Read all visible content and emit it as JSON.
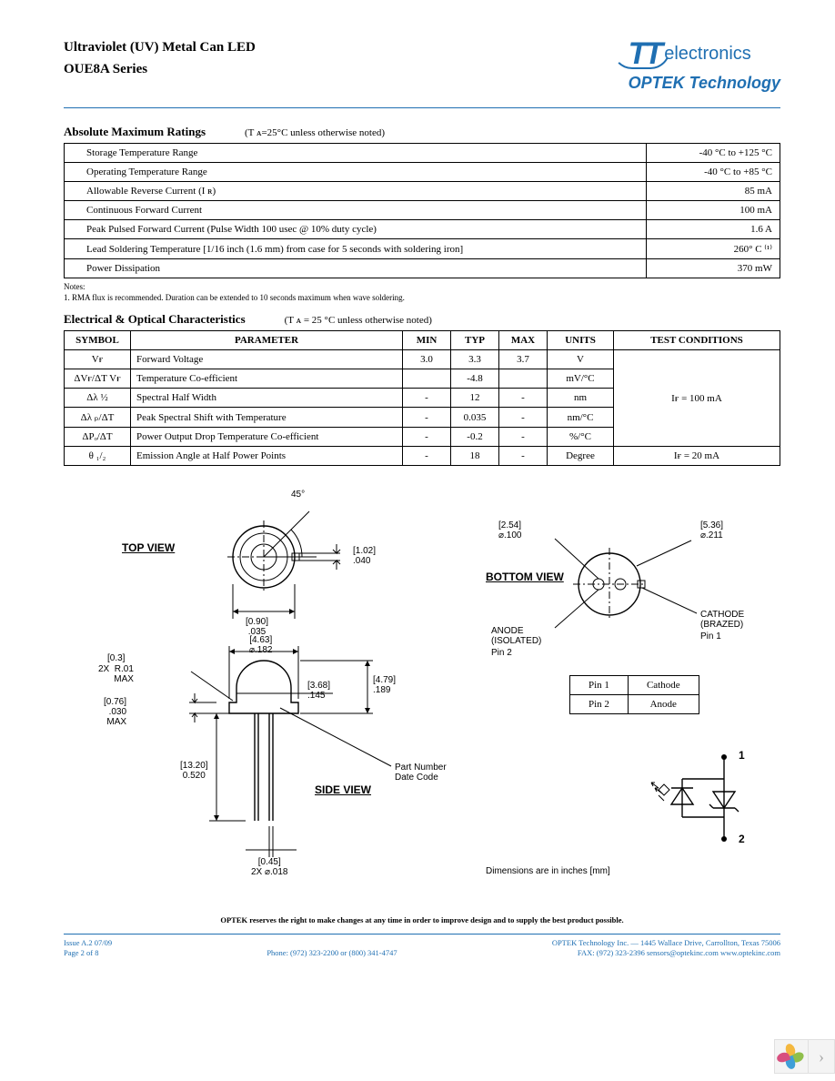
{
  "header": {
    "title1": "Ultraviolet (UV) Metal Can LED",
    "title2": "OUE8A Series",
    "logo_elec": "electronics",
    "logo_optek": "OPTEK Technology"
  },
  "ratings": {
    "section_title": "Absolute Maximum Ratings",
    "section_note": "(T ᴀ=25°C unless otherwise noted)",
    "rows": [
      {
        "label": "Storage Temperature Range",
        "value": "-40 °C to +125  °C"
      },
      {
        "label": "Operating Temperature Range",
        "value": "-40 °C to +85  °C"
      },
      {
        "label": "Allowable Reverse Current (I ʀ)",
        "value": "85 mA"
      },
      {
        "label": "Continuous Forward Current",
        "value": "100 mA"
      },
      {
        "label": "Peak Pulsed Forward Current  (Pulse Width 100 usec @  10% duty cycle)",
        "value": "1.6 A"
      },
      {
        "label": "Lead Soldering Temperature [1/16 inch (1.6 mm) from case for 5 seconds with soldering iron]",
        "value": "260° C ⁽¹⁾"
      },
      {
        "label": "Power Dissipation",
        "value": "370  mW"
      }
    ],
    "notes_label": "Notes:",
    "note1": "1. RMA flux is recommended. Duration can be extended to 10 seconds maximum when wave soldering."
  },
  "chars": {
    "section_title": "Electrical & Optical Characteristics",
    "section_note": "(T ᴀ = 25  °C unless otherwise noted)",
    "headers": [
      "SYMBOL",
      "PARAMETER",
      "MIN",
      "TYP",
      "MAX",
      "UNITS",
      "TEST   CONDITIONS"
    ],
    "rows": [
      {
        "sym": "Vғ",
        "param": "Forward Voltage",
        "min": "3.0",
        "typ": "3.3",
        "max": "3.7",
        "units": "V"
      },
      {
        "sym": "ΔVғ/ΔT Vғ",
        "param": "Temperature Co-efficient",
        "min": "",
        "typ": "-4.8",
        "max": "",
        "units": "mV/°C"
      },
      {
        "sym": "Δλ ½",
        "param": "Spectral Half Width",
        "min": "-",
        "typ": "12",
        "max": "-",
        "units": "nm"
      },
      {
        "sym": "Δλ ₚ/ΔT",
        "param": "Peak Spectral Shift with Temperature",
        "min": "-",
        "typ": "0.035",
        "max": "-",
        "units": "nm/°C"
      },
      {
        "sym": "ΔPₒ/ΔT",
        "param": "Power Output Drop Temperature Co-efficient",
        "min": "-",
        "typ": "-0.2",
        "max": "-",
        "units": "%/°C"
      }
    ],
    "cond1": "Iғ = 100 mA",
    "last_row": {
      "sym": "θ ₁/₂",
      "param": "Emission Angle at Half Power Points",
      "min": "-",
      "typ": "18",
      "max": "-",
      "units": "Degree",
      "cond": "Iғ = 20 mA"
    }
  },
  "diagram": {
    "top_view": "TOP VIEW",
    "side_view": "SIDE VIEW",
    "bottom_view": "BOTTOM VIEW",
    "angle45": "45°",
    "d102": "[1.02]\n.040",
    "d090": "[0.90]\n.035",
    "r01": "2X  R.01\nMAX",
    "r03": "[0.3]",
    "d076": "[0.76]\n.030\nMAX",
    "d463": "[4.63]\n⌀.182",
    "d368": "[3.68]\n.145",
    "d479": "[4.79]\n.189",
    "d1320": "[13.20]\n0.520",
    "d045": "[0.45]\n2X ⌀.018",
    "d254": "[2.54]\n⌀.100",
    "d536": "[5.36]\n⌀.211",
    "anode": "ANODE\n(ISOLATED)",
    "pin2": "Pin 2",
    "cathode": "CATHODE\n(BRAZED)",
    "pin1": "Pin 1",
    "partnum": "Part Number\nDate Code",
    "pins": [
      [
        "Pin 1",
        "Cathode"
      ],
      [
        "Pin 2",
        "Anode"
      ]
    ],
    "sym1": "1",
    "sym2": "2",
    "dim_note": "Dimensions are in inches [mm]",
    "disclaimer": "OPTEK reserves the right to make changes at any time in order to improve design and to supply the best product possible."
  },
  "footer": {
    "left1": "Issue A.2      07/09",
    "left2": "Page 2 of 8",
    "mid": "Phone: (972) 323-2200 or (800) 341-4747",
    "right1": "OPTEK Technology Inc. — 1445 Wallace Drive, Carrollton, Texas 75006",
    "right2": "FAX: (972) 323-2396  sensors@optekinc.com  www.optekinc.com"
  },
  "colors": {
    "blue": "#1f6fb2",
    "petals": [
      "#f4b83f",
      "#8fbf4b",
      "#3f9fd8",
      "#d84f7f"
    ]
  }
}
